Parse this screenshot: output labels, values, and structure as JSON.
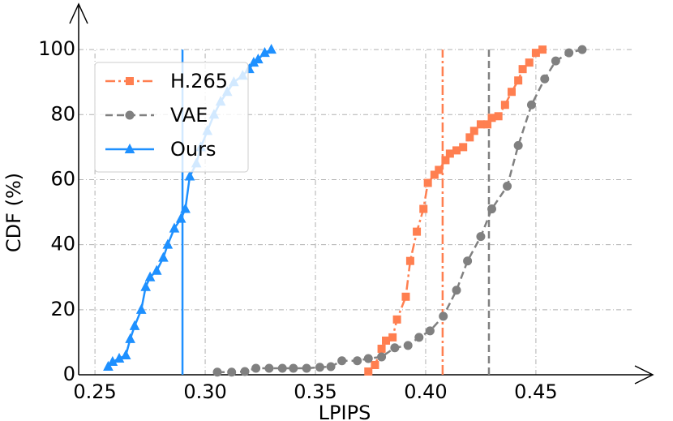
{
  "chart_data": {
    "type": "line",
    "xlabel": "LPIPS",
    "ylabel": "CDF (%)",
    "xlim": [
      0.2426,
      0.503
    ],
    "ylim": [
      0,
      114
    ],
    "xticks": [
      0.25,
      {
        "value": 0.3,
        "label": "0.30"
      },
      0.35,
      {
        "value": 0.4,
        "label": "0.40"
      },
      0.45
    ],
    "yticks": [
      0,
      20,
      40,
      60,
      80,
      100
    ],
    "grid": true,
    "legend": "upper left",
    "series": [
      {
        "name": "H.265",
        "color": "#ff7f50",
        "dash": "12,4,3,4",
        "marker": "square",
        "x": [
          0.374,
          0.377,
          0.38,
          0.382,
          0.385,
          0.387,
          0.391,
          0.393,
          0.396,
          0.399,
          0.401,
          0.404,
          0.406,
          0.409,
          0.411,
          0.414,
          0.417,
          0.42,
          0.422,
          0.425,
          0.428,
          0.43,
          0.433,
          0.436,
          0.439,
          0.442,
          0.444,
          0.447,
          0.45,
          0.453
        ],
        "values": [
          1,
          3,
          8,
          10.5,
          11.5,
          17,
          24,
          35,
          44,
          51,
          59,
          61.5,
          63,
          66,
          68,
          69,
          70,
          73,
          75,
          77,
          77,
          79,
          79.5,
          83,
          87,
          90.5,
          94,
          96,
          99,
          100
        ]
      },
      {
        "name": "VAE",
        "color": "#808080",
        "dash": "9,5",
        "marker": "circle",
        "x": [
          0.3055,
          0.312,
          0.318,
          0.323,
          0.329,
          0.335,
          0.34,
          0.346,
          0.352,
          0.357,
          0.362,
          0.369,
          0.374,
          0.38,
          0.386,
          0.392,
          0.397,
          0.402,
          0.408,
          0.414,
          0.419,
          0.425,
          0.43,
          0.437,
          0.442,
          0.448,
          0.454,
          0.459,
          0.465,
          0.471
        ],
        "values": [
          0.8,
          0.8,
          1,
          2,
          2,
          2,
          2,
          2,
          2.3,
          2.5,
          4.3,
          4.3,
          5,
          5.5,
          8.3,
          9,
          11.5,
          13.5,
          18,
          26,
          35,
          42.5,
          51,
          58,
          70.5,
          83,
          91,
          96.5,
          99,
          100
        ]
      },
      {
        "name": "Ours",
        "color": "#1e90ff",
        "dash": "",
        "marker": "triangle",
        "x": [
          0.256,
          0.258,
          0.261,
          0.264,
          0.266,
          0.268,
          0.271,
          0.273,
          0.275,
          0.278,
          0.281,
          0.283,
          0.286,
          0.289,
          0.291,
          0.293,
          0.296,
          0.298,
          0.301,
          0.304,
          0.307,
          0.31,
          0.313,
          0.317,
          0.32,
          0.322,
          0.324,
          0.327,
          0.33
        ],
        "values": [
          2.5,
          4,
          5,
          6,
          11,
          15,
          20,
          27,
          30,
          32,
          36,
          40,
          45,
          48,
          51,
          61,
          65,
          70,
          75,
          80,
          84,
          87,
          90,
          92,
          94,
          96,
          97,
          99,
          100
        ]
      }
    ],
    "vlines": [
      {
        "x": 0.2897,
        "color": "#1e90ff",
        "dash": ""
      },
      {
        "x": 0.4077,
        "color": "#ff7f50",
        "dash": "12,4,3,4"
      },
      {
        "x": 0.4287,
        "color": "#808080",
        "dash": "9,5"
      }
    ]
  }
}
